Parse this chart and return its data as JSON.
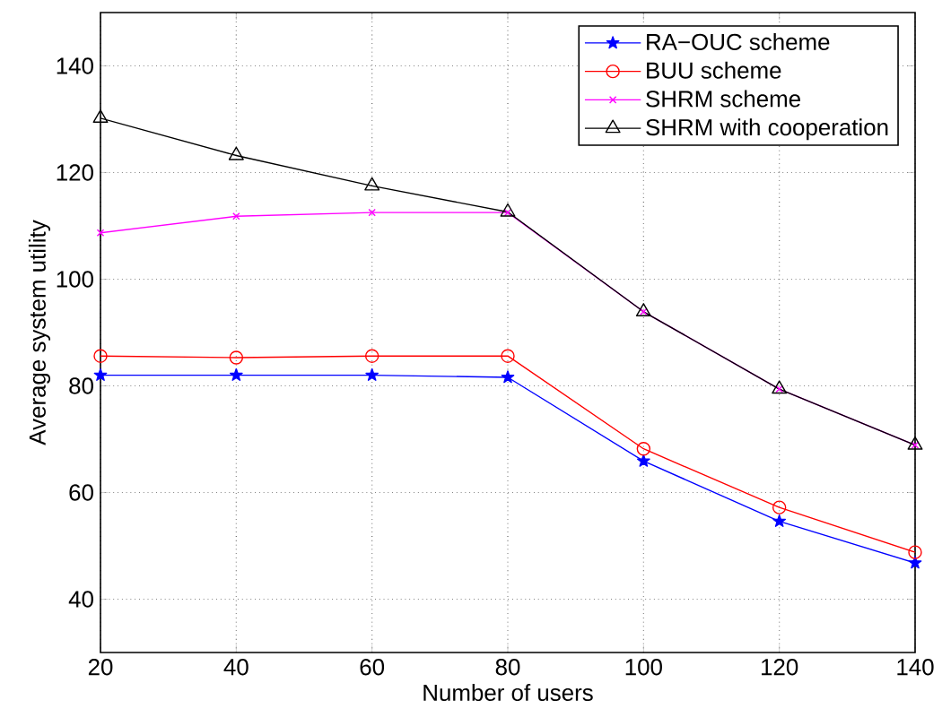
{
  "chart_data": {
    "type": "line",
    "xlabel": "Number of users",
    "ylabel": "Average system utility",
    "x": [
      20,
      40,
      60,
      80,
      100,
      120,
      140
    ],
    "series": [
      {
        "name": "RA−OUC scheme",
        "color": "#0000ff",
        "marker": "star",
        "values": [
          82.0,
          82.0,
          82.0,
          81.6,
          65.9,
          54.6,
          46.8
        ]
      },
      {
        "name": "BUU scheme",
        "color": "#ff0000",
        "marker": "circle",
        "values": [
          85.6,
          85.3,
          85.6,
          85.6,
          68.2,
          57.2,
          48.8
        ]
      },
      {
        "name": "SHRM scheme",
        "color": "#ff00ff",
        "marker": "cross",
        "values": [
          108.7,
          111.8,
          112.5,
          112.5,
          93.9,
          79.4,
          68.9
        ]
      },
      {
        "name": "SHRM with cooperation",
        "color": "#000000",
        "marker": "triangle",
        "values": [
          130.2,
          123.2,
          117.5,
          112.6,
          93.9,
          79.4,
          68.9
        ]
      }
    ],
    "xlim": [
      20,
      140
    ],
    "ylim": [
      30,
      150
    ],
    "xticks": [
      20,
      40,
      60,
      80,
      100,
      120,
      140
    ],
    "yticks": [
      40,
      60,
      80,
      100,
      120,
      140
    ],
    "grid": true,
    "legend": "top right",
    "line_style": "solid"
  }
}
